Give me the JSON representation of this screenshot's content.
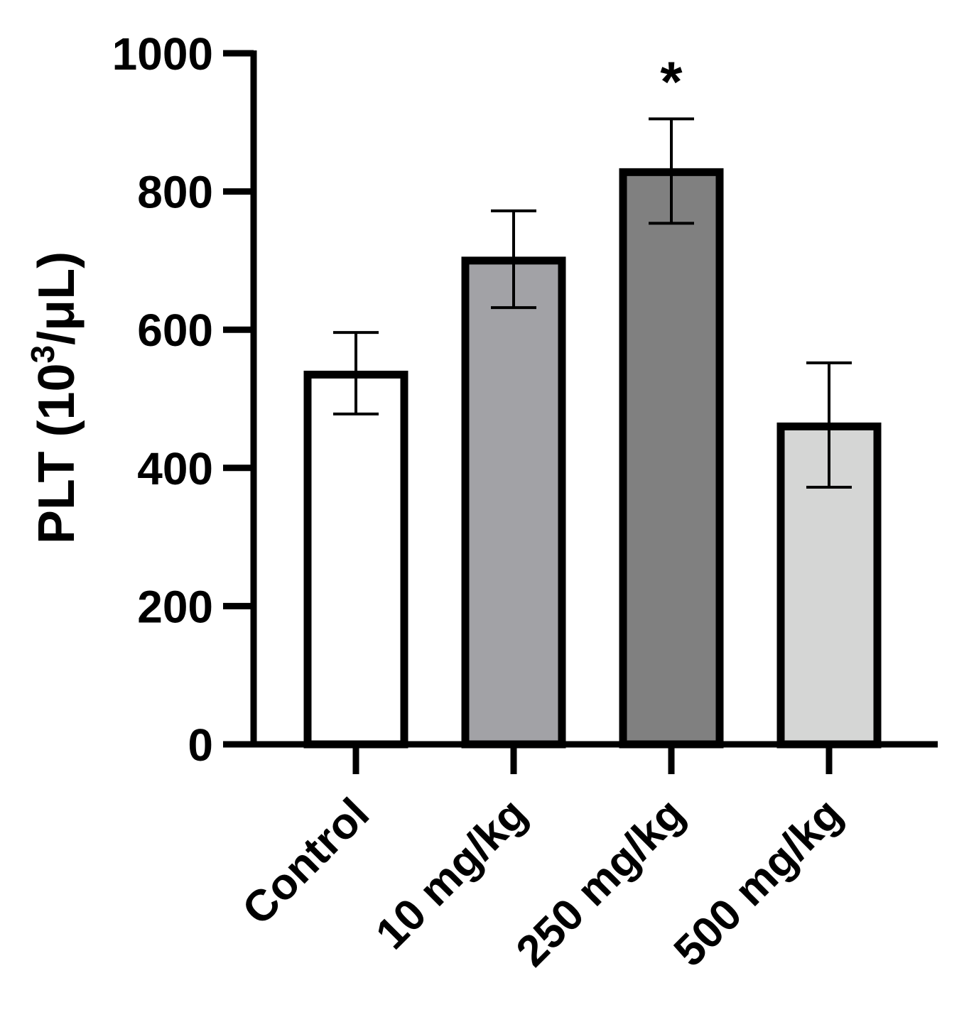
{
  "chart_data": {
    "type": "bar",
    "categories": [
      "Control",
      "10 mg/kg",
      "250 mg/kg",
      "500 mg/kg"
    ],
    "values": [
      535,
      700,
      828,
      460
    ],
    "error_upper": [
      596,
      772,
      905,
      552
    ],
    "error_lower": [
      478,
      632,
      754,
      372
    ],
    "bar_colors": [
      "#ffffff",
      "#a2a2a6",
      "#808080",
      "#d5d6d5"
    ],
    "significance": [
      "",
      "",
      "*",
      ""
    ],
    "ylabel": {
      "main": "PLT (10",
      "superscript": "3",
      "rest": "/μL)"
    },
    "yticks": [
      "0",
      "200",
      "400",
      "600",
      "800",
      "1000"
    ],
    "ylim": [
      0,
      1000
    ],
    "grid": false,
    "legend": "none"
  }
}
